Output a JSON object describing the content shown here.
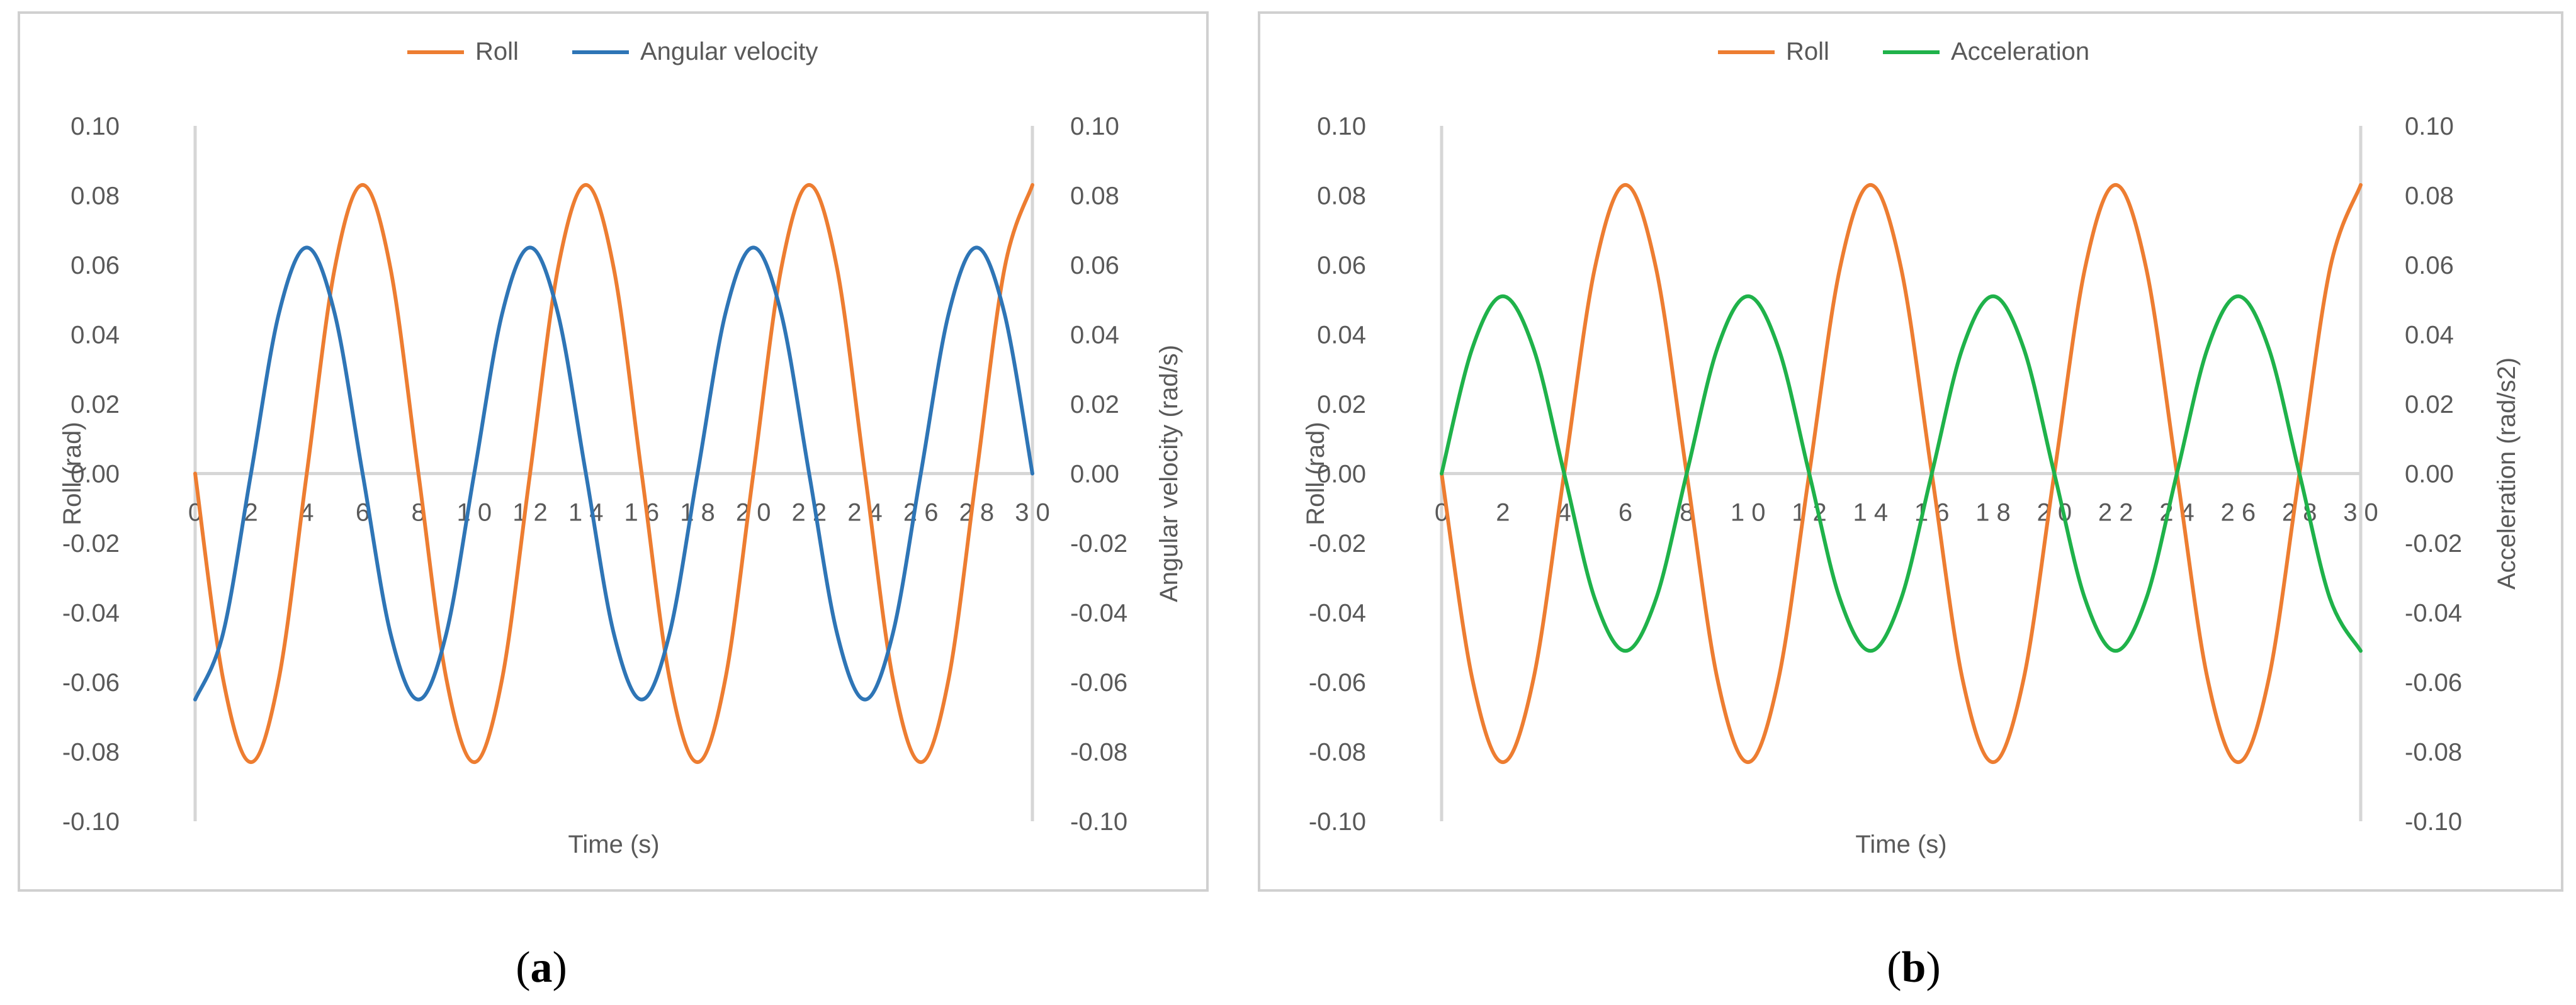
{
  "colors": {
    "roll": "#ed7d31",
    "angular_velocity": "#2e75b6",
    "acceleration": "#1fb24a"
  },
  "chart_data": [
    {
      "type": "line",
      "caption_open": "(",
      "caption_letter": "a",
      "caption_close": ")",
      "xlabel": "Time (s)",
      "ylabel": "Roll (rad)",
      "y2label": "Angular velocity (rad/s)",
      "xlim": [
        0,
        30
      ],
      "ylim": [
        -0.1,
        0.1
      ],
      "y2lim": [
        -0.1,
        0.1
      ],
      "x_tick_labels": [
        "0",
        "2",
        "4",
        "6",
        "8",
        "1 0",
        "1 2",
        "1 4",
        "1 6",
        "1 8",
        "2 0",
        "2 2",
        "2 4",
        "2 6",
        "2 8",
        "3 0"
      ],
      "y_tick_labels": [
        "0.10",
        "0.08",
        "0.06",
        "0.04",
        "0.02",
        "0.00",
        "-0.02",
        "-0.04",
        "-0.06",
        "-0.08",
        "-0.10"
      ],
      "y2_tick_labels": [
        "0.10",
        "0.08",
        "0.06",
        "0.04",
        "0.02",
        "0.00",
        "-0.02",
        "-0.04",
        "-0.06",
        "-0.08",
        "-0.10"
      ],
      "grid": false,
      "legend_position": "top-center",
      "series": [
        {
          "name": "Roll",
          "axis": "left",
          "color_key": "roll",
          "x": [
            0,
            1,
            2,
            3,
            4,
            5,
            6,
            7,
            8,
            9,
            10,
            11,
            12,
            13,
            14,
            15,
            16,
            17,
            18,
            19,
            20,
            21,
            22,
            23,
            24,
            25,
            26,
            27,
            28,
            29,
            30
          ],
          "y": [
            0.0,
            -0.059,
            -0.083,
            -0.059,
            0.0,
            0.059,
            0.083,
            0.059,
            0.0,
            -0.059,
            -0.083,
            -0.059,
            0.0,
            0.059,
            0.083,
            0.059,
            0.0,
            -0.059,
            -0.083,
            -0.059,
            0.0,
            0.059,
            0.083,
            0.059,
            0.0,
            -0.059,
            -0.083,
            -0.059,
            0.0,
            0.059,
            0.083
          ]
        },
        {
          "name": "Angular velocity",
          "axis": "right",
          "color_key": "angular_velocity",
          "x": [
            0,
            1,
            2,
            3,
            4,
            5,
            6,
            7,
            8,
            9,
            10,
            11,
            12,
            13,
            14,
            15,
            16,
            17,
            18,
            19,
            20,
            21,
            22,
            23,
            24,
            25,
            26,
            27,
            28,
            29,
            30
          ],
          "y": [
            -0.065,
            -0.046,
            0.0,
            0.046,
            0.065,
            0.046,
            0.0,
            -0.046,
            -0.065,
            -0.046,
            0.0,
            0.046,
            0.065,
            0.046,
            0.0,
            -0.046,
            -0.065,
            -0.046,
            0.0,
            0.046,
            0.065,
            0.046,
            0.0,
            -0.046,
            -0.065,
            -0.046,
            0.0,
            0.046,
            0.065,
            0.046,
            0.0
          ]
        }
      ]
    },
    {
      "type": "line",
      "caption_open": "(",
      "caption_letter": "b",
      "caption_close": ")",
      "xlabel": "Time (s)",
      "ylabel": "Roll (rad)",
      "y2label": "Acceleration (rad/s2)",
      "xlim": [
        0,
        30
      ],
      "ylim": [
        -0.1,
        0.1
      ],
      "y2lim": [
        -0.1,
        0.1
      ],
      "x_tick_labels": [
        "0",
        "2",
        "4",
        "6",
        "8",
        "1 0",
        "1 2",
        "1 4",
        "1 6",
        "1 8",
        "2 0",
        "2 2",
        "2 4",
        "2 6",
        "2 8",
        "3 0"
      ],
      "y_tick_labels": [
        "0.10",
        "0.08",
        "0.06",
        "0.04",
        "0.02",
        "0.00",
        "-0.02",
        "-0.04",
        "-0.06",
        "-0.08",
        "-0.10"
      ],
      "y2_tick_labels": [
        "0.10",
        "0.08",
        "0.06",
        "0.04",
        "0.02",
        "0.00",
        "-0.02",
        "-0.04",
        "-0.06",
        "-0.08",
        "-0.10"
      ],
      "grid": false,
      "legend_position": "top-center",
      "series": [
        {
          "name": "Roll",
          "axis": "left",
          "color_key": "roll",
          "x": [
            0,
            1,
            2,
            3,
            4,
            5,
            6,
            7,
            8,
            9,
            10,
            11,
            12,
            13,
            14,
            15,
            16,
            17,
            18,
            19,
            20,
            21,
            22,
            23,
            24,
            25,
            26,
            27,
            28,
            29,
            30
          ],
          "y": [
            0.0,
            -0.059,
            -0.083,
            -0.059,
            0.0,
            0.059,
            0.083,
            0.059,
            0.0,
            -0.059,
            -0.083,
            -0.059,
            0.0,
            0.059,
            0.083,
            0.059,
            0.0,
            -0.059,
            -0.083,
            -0.059,
            0.0,
            0.059,
            0.083,
            0.059,
            0.0,
            -0.059,
            -0.083,
            -0.059,
            0.0,
            0.059,
            0.083
          ]
        },
        {
          "name": "Acceleration",
          "axis": "right",
          "color_key": "acceleration",
          "x": [
            0,
            1,
            2,
            3,
            4,
            5,
            6,
            7,
            8,
            9,
            10,
            11,
            12,
            13,
            14,
            15,
            16,
            17,
            18,
            19,
            20,
            21,
            22,
            23,
            24,
            25,
            26,
            27,
            28,
            29,
            30
          ],
          "y": [
            0.0,
            0.036,
            0.051,
            0.036,
            0.0,
            -0.036,
            -0.051,
            -0.036,
            0.0,
            0.036,
            0.051,
            0.036,
            0.0,
            -0.036,
            -0.051,
            -0.036,
            0.0,
            0.036,
            0.051,
            0.036,
            0.0,
            -0.036,
            -0.051,
            -0.036,
            0.0,
            0.036,
            0.051,
            0.036,
            0.0,
            -0.036,
            -0.051
          ]
        }
      ]
    }
  ]
}
